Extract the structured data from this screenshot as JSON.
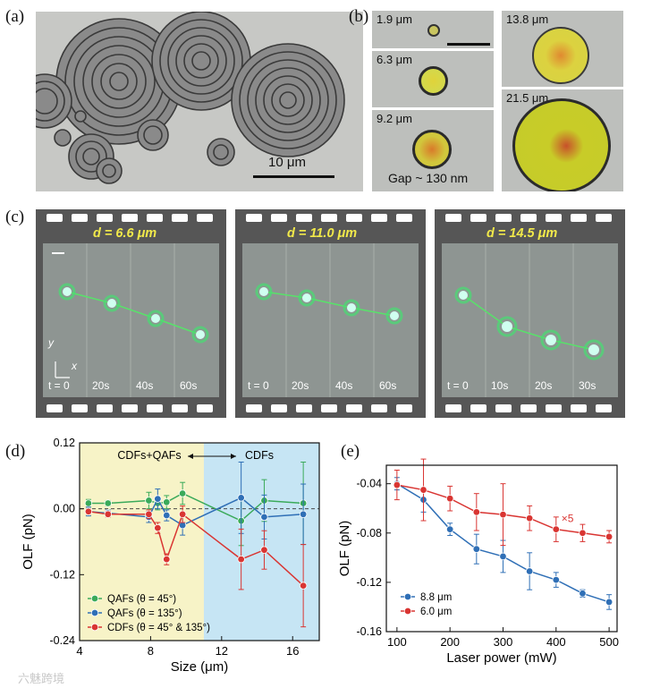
{
  "figure": {
    "panel_labels": [
      "(a)",
      "(b)",
      "(c)",
      "(d)",
      "(e)"
    ],
    "panel_a": {
      "scale_bar": "10 μm"
    },
    "panel_b": {
      "particles": [
        {
          "size": "1.9 μm",
          "color": "#c9c560"
        },
        {
          "size": "6.3 μm",
          "color": "#d5d84a"
        },
        {
          "size": "9.2 μm",
          "color": "#d1c73c"
        },
        {
          "size": "13.8 μm",
          "color": "#dcd240"
        },
        {
          "size": "21.5 μm",
          "color": "#c8cc28"
        }
      ],
      "gap_note": "Gap ~ 130 nm"
    },
    "panel_c": {
      "strips": [
        {
          "d_label": "d = 6.6 μm",
          "times": [
            "t = 0",
            "20s",
            "40s",
            "60s"
          ]
        },
        {
          "d_label": "d = 11.0 μm",
          "times": [
            "t = 0",
            "20s",
            "40s",
            "60s"
          ]
        },
        {
          "d_label": "d = 14.5 μm",
          "times": [
            "t = 0",
            "10s",
            "20s",
            "30s"
          ]
        }
      ],
      "axis_y": "y",
      "axis_x": "x"
    },
    "watermark": "六魅跨境"
  },
  "chart_data": [
    {
      "panel": "(d)",
      "type": "line",
      "title": "",
      "xlabel": "Size (μm)",
      "ylabel": "OLF (pN)",
      "xlim": [
        4,
        17.5
      ],
      "ylim": [
        -0.24,
        0.12
      ],
      "xticks": [
        "4",
        "8",
        "12",
        "16"
      ],
      "yticks": [
        "0.12",
        "0.00",
        "-0.12",
        "-0.24"
      ],
      "regions": [
        {
          "label": "CDFs+QAFs",
          "from": 4,
          "to": 11.0,
          "color": "#f7f3c7"
        },
        {
          "label": "CDFs",
          "from": 11.0,
          "to": 17.5,
          "color": "#c6e5f4"
        }
      ],
      "legend_position": "bottom-left",
      "series": [
        {
          "name": "QAFs (θ = 45°)",
          "color": "#3aaa5a",
          "x": [
            4.5,
            5.6,
            7.9,
            8.4,
            8.9,
            9.8,
            13.1,
            14.4,
            16.6
          ],
          "y": [
            0.01,
            0.01,
            0.015,
            0.01,
            0.012,
            0.028,
            -0.022,
            0.015,
            0.01
          ],
          "err": [
            0.007,
            0.005,
            0.015,
            0.012,
            0.012,
            0.02,
            0.045,
            0.038,
            0.075
          ]
        },
        {
          "name": "QAFs (θ = 135°)",
          "color": "#2f6fb6",
          "x": [
            4.5,
            5.6,
            7.9,
            8.4,
            8.9,
            9.8,
            13.1,
            14.4,
            16.6
          ],
          "y": [
            -0.005,
            -0.008,
            -0.015,
            0.018,
            -0.012,
            -0.03,
            0.02,
            -0.015,
            -0.01
          ],
          "err": [
            0.008,
            0.006,
            0.01,
            0.018,
            0.01,
            0.018,
            0.065,
            0.04,
            0.055
          ]
        },
        {
          "name": "CDFs (θ = 45° & 135°)",
          "color": "#d93532",
          "x": [
            4.5,
            5.6,
            7.9,
            8.4,
            8.9,
            9.8,
            13.1,
            14.4,
            16.6
          ],
          "y": [
            -0.005,
            -0.01,
            -0.01,
            -0.035,
            -0.092,
            -0.01,
            -0.092,
            -0.075,
            -0.14
          ],
          "err": [
            0.005,
            0.005,
            0.008,
            0.01,
            0.01,
            0.015,
            0.055,
            0.035,
            0.075
          ]
        }
      ]
    },
    {
      "panel": "(e)",
      "type": "line",
      "title": "",
      "xlabel": "Laser power (mW)",
      "ylabel": "OLF (pN)",
      "xlim": [
        80,
        515
      ],
      "ylim": [
        -0.16,
        -0.025
      ],
      "xticks": [
        "100",
        "200",
        "300",
        "400",
        "500"
      ],
      "yticks": [
        "-0.04",
        "-0.08",
        "-0.12",
        "-0.16"
      ],
      "annotation": "×5",
      "legend_position": "bottom-left",
      "series": [
        {
          "name": "8.8 μm",
          "color": "#2f6fb6",
          "x": [
            100,
            150,
            200,
            250,
            300,
            350,
            400,
            450,
            500
          ],
          "y": [
            -0.04,
            -0.053,
            -0.077,
            -0.093,
            -0.099,
            -0.111,
            -0.118,
            -0.129,
            -0.136
          ],
          "err": [
            0.005,
            0.01,
            0.005,
            0.012,
            0.013,
            0.015,
            0.006,
            0.003,
            0.006
          ]
        },
        {
          "name": "6.0 μm",
          "color": "#d93532",
          "x": [
            100,
            150,
            200,
            250,
            300,
            350,
            400,
            450,
            500
          ],
          "y": [
            -0.041,
            -0.045,
            -0.052,
            -0.063,
            -0.065,
            -0.068,
            -0.077,
            -0.08,
            -0.083
          ],
          "err": [
            0.012,
            0.025,
            0.01,
            0.015,
            0.025,
            0.01,
            0.01,
            0.007,
            0.005
          ]
        }
      ]
    }
  ]
}
